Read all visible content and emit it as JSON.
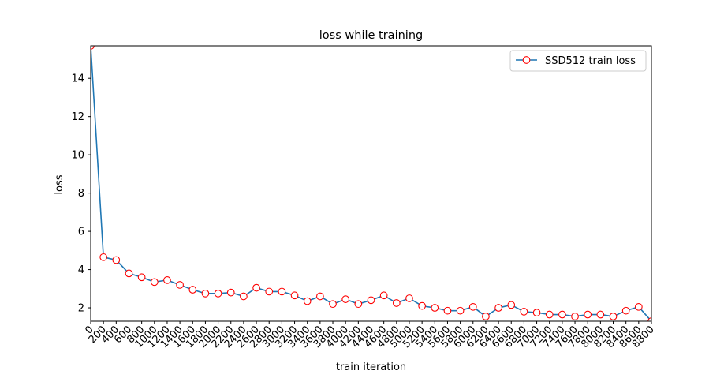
{
  "chart_data": {
    "type": "line",
    "title": "loss while training",
    "xlabel": "train iteration",
    "ylabel": "loss",
    "xlim": [
      0,
      8800
    ],
    "ylim": [
      1.3,
      15.7
    ],
    "x_ticks": [
      0,
      200,
      400,
      600,
      800,
      1000,
      1200,
      1400,
      1600,
      1800,
      2000,
      2200,
      2400,
      2600,
      2800,
      3000,
      3200,
      3400,
      3600,
      3800,
      4000,
      4200,
      4400,
      4600,
      4800,
      5000,
      5200,
      5400,
      5600,
      5800,
      6000,
      6200,
      6400,
      6600,
      6800,
      7000,
      7200,
      7400,
      7600,
      7800,
      8000,
      8200,
      8400,
      8600,
      8800
    ],
    "y_ticks": [
      2,
      4,
      6,
      8,
      10,
      12,
      14
    ],
    "grid": false,
    "legend_position": "top-right",
    "series": [
      {
        "name": "SSD512 train loss",
        "color": "#1f77b4",
        "marker_edge_color": "#ff0000",
        "marker_face_color": "#ffffff",
        "x": [
          0,
          200,
          400,
          600,
          800,
          1000,
          1200,
          1400,
          1600,
          1800,
          2000,
          2200,
          2400,
          2600,
          2800,
          3000,
          3200,
          3400,
          3600,
          3800,
          4000,
          4200,
          4400,
          4600,
          4800,
          5000,
          5200,
          5400,
          5600,
          5800,
          6000,
          6200,
          6400,
          6600,
          6800,
          7000,
          7200,
          7400,
          7600,
          7800,
          8000,
          8200,
          8400,
          8600,
          8800
        ],
        "y": [
          15.7,
          4.65,
          4.5,
          3.8,
          3.6,
          3.35,
          3.45,
          3.2,
          2.95,
          2.75,
          2.75,
          2.8,
          2.6,
          3.05,
          2.85,
          2.85,
          2.65,
          2.35,
          2.6,
          2.2,
          2.45,
          2.2,
          2.4,
          2.65,
          2.25,
          2.5,
          2.1,
          2.0,
          1.85,
          1.85,
          2.05,
          1.55,
          2.0,
          2.15,
          1.8,
          1.75,
          1.65,
          1.65,
          1.55,
          1.65,
          1.65,
          1.55,
          1.85,
          2.05,
          1.3
        ]
      }
    ]
  }
}
